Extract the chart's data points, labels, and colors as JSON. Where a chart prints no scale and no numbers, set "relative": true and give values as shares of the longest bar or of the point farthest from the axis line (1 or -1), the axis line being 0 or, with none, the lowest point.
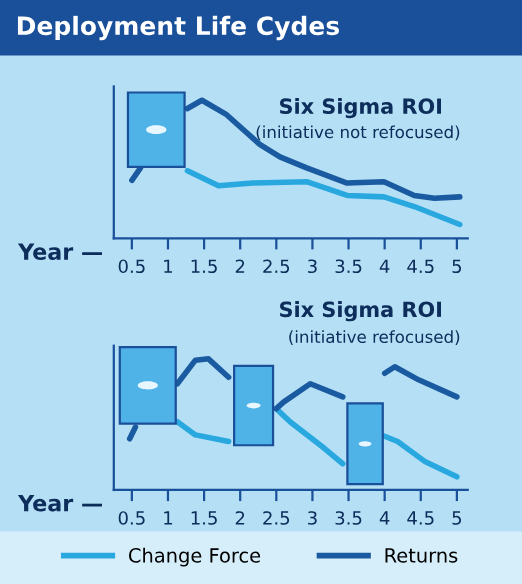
{
  "chart_data": [
    {
      "type": "line",
      "title": "Six Sigma ROI",
      "subtitle": "(initiative not refocused)",
      "annotations": [
        "Deployment Life Cydes"
      ],
      "xlabel": "Year —",
      "relative": true,
      "tick_labels": "x",
      "legend": "bottom",
      "xlim": [
        0.25,
        5.15
      ],
      "xticks": [
        0.5,
        1,
        1.5,
        2,
        2.5,
        3,
        3.5,
        4,
        4.5,
        5
      ],
      "series": [
        {
          "name": "Change Force",
          "color": "#29a8e0",
          "x": [
            1.27,
            1.7,
            2.17,
            2.92,
            3.48,
            3.99,
            4.41,
            5.04
          ],
          "values": [
            0.49,
            0.38,
            0.4,
            0.41,
            0.31,
            0.3,
            0.23,
            0.1
          ]
        },
        {
          "name": "Returns",
          "color": "#1a5aa0",
          "x": [
            0.5,
            0.62,
            0.9,
            1.27,
            1.47,
            1.8,
            2.27,
            2.55,
            2.92,
            3.48,
            3.99,
            4.41,
            4.69,
            5.04
          ],
          "values": [
            0.42,
            0.51,
            null,
            0.94,
            1.0,
            0.9,
            0.68,
            0.59,
            0.51,
            0.4,
            0.41,
            0.31,
            0.29,
            0.3
          ]
        }
      ]
    },
    {
      "type": "line",
      "title": "Six Sigma ROI",
      "subtitle": "(initiative refocused)",
      "xlabel": "Year —",
      "relative": true,
      "tick_labels": "x",
      "xlim": [
        0.25,
        5.15
      ],
      "xticks": [
        0.5,
        1,
        1.5,
        2,
        2.5,
        3,
        3.5,
        4,
        4.5,
        5
      ],
      "series": [
        {
          "color": "#29a8e0",
          "x": [
            1.13,
            1.38,
            1.84,
            2.1,
            2.5,
            2.69,
            3.16,
            3.42,
            3.7,
            4.0,
            4.18,
            4.55,
            5.0
          ],
          "values": [
            0.52,
            0.42,
            0.37,
            null,
            0.62,
            0.52,
            0.32,
            0.2,
            null,
            0.41,
            0.37,
            0.22,
            0.1
          ]
        },
        {
          "color": "#1a5aa0",
          "x": [
            0.47,
            0.55,
            0.8,
            1.13,
            1.38,
            1.56,
            1.84,
            2.1,
            2.5,
            2.6,
            2.97,
            3.42,
            3.7,
            4.0,
            4.14,
            4.47,
            5.0
          ],
          "values": [
            0.39,
            0.48,
            null,
            0.81,
            0.99,
            1.0,
            0.86,
            null,
            0.62,
            0.67,
            0.81,
            0.71,
            null,
            0.89,
            0.94,
            0.84,
            0.71
          ]
        }
      ]
    }
  ]
}
